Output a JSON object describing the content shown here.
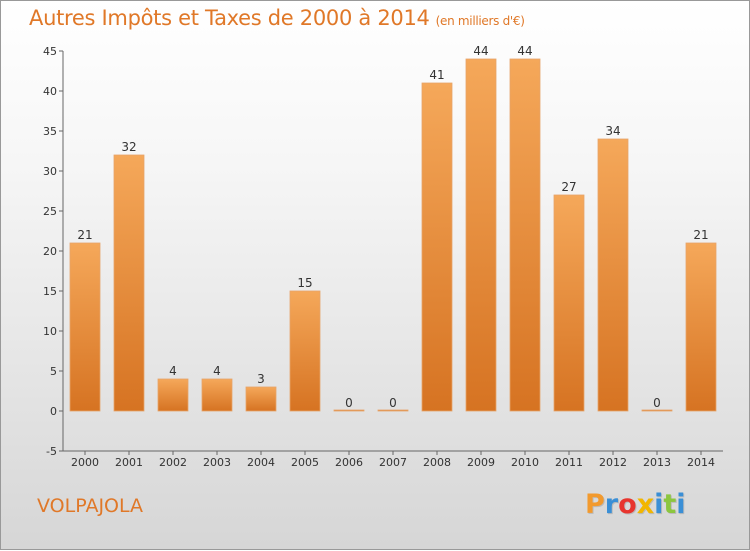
{
  "title": "Autres Impôts et Taxes de 2000 à 2014",
  "subtitle": "(en milliers d'€)",
  "location": "VOLPAJOLA",
  "brand": "Proxiti",
  "brand_colors": [
    "#f29a2e",
    "#3a8fd6",
    "#e8352e",
    "#f2b600",
    "#3a8fd6",
    "#8cc63f",
    "#3a8fd6"
  ],
  "colors": {
    "bar_light": "#f5a85a",
    "bar_dark": "#d67322",
    "accent": "#e07828"
  },
  "chart_data": {
    "type": "bar",
    "title": "Autres Impôts et Taxes de 2000 à 2014",
    "subtitle": "(en milliers d'€)",
    "categories": [
      "2000",
      "2001",
      "2002",
      "2003",
      "2004",
      "2005",
      "2006",
      "2007",
      "2008",
      "2009",
      "2010",
      "2011",
      "2012",
      "2013",
      "2014"
    ],
    "values": [
      21,
      32,
      4,
      4,
      3,
      15,
      0,
      0,
      41,
      44,
      44,
      27,
      34,
      0,
      21
    ],
    "xlabel": "",
    "ylabel": "",
    "ylim": [
      -5,
      45
    ],
    "yticks": [
      -5,
      0,
      5,
      10,
      15,
      20,
      25,
      30,
      35,
      40,
      45
    ],
    "grid": false,
    "data_labels": true
  }
}
